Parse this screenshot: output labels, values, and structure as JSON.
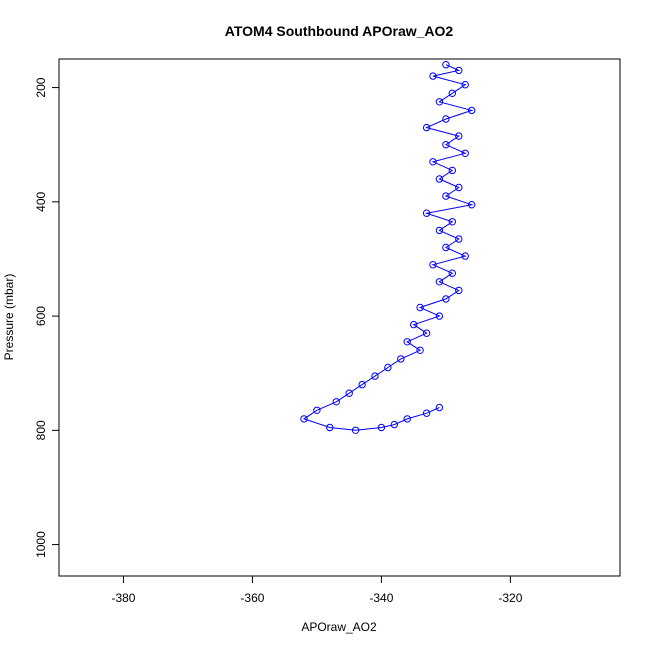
{
  "chart_data": {
    "type": "scatter",
    "title": "ATOM4 Southbound APOraw_AO2",
    "xlabel": "APOraw_AO2",
    "ylabel": "Pressure (mbar)",
    "xlim": [
      -390,
      -303
    ],
    "ylim": [
      1055,
      150
    ],
    "y_reversed": true,
    "xticks": [
      -380,
      -360,
      -340,
      -320
    ],
    "yticks": [
      200,
      400,
      600,
      800,
      1000
    ],
    "grid": false,
    "legend": "none",
    "marker": "open-circle",
    "connected": true,
    "series_color": "#0000ff",
    "series": [
      {
        "points": [
          [
            -330,
            160
          ],
          [
            -328,
            170
          ],
          [
            -332,
            180
          ],
          [
            -327,
            195
          ],
          [
            -329,
            210
          ],
          [
            -331,
            225
          ],
          [
            -326,
            240
          ],
          [
            -330,
            255
          ],
          [
            -333,
            270
          ],
          [
            -328,
            285
          ],
          [
            -330,
            300
          ],
          [
            -327,
            315
          ],
          [
            -332,
            330
          ],
          [
            -329,
            345
          ],
          [
            -331,
            360
          ],
          [
            -328,
            375
          ],
          [
            -330,
            390
          ],
          [
            -326,
            405
          ],
          [
            -333,
            420
          ],
          [
            -329,
            435
          ],
          [
            -331,
            450
          ],
          [
            -328,
            465
          ],
          [
            -330,
            480
          ],
          [
            -327,
            495
          ],
          [
            -332,
            510
          ],
          [
            -329,
            525
          ],
          [
            -331,
            540
          ],
          [
            -328,
            555
          ],
          [
            -330,
            570
          ],
          [
            -334,
            585
          ],
          [
            -331,
            600
          ],
          [
            -335,
            615
          ],
          [
            -333,
            630
          ],
          [
            -336,
            645
          ],
          [
            -334,
            660
          ],
          [
            -337,
            675
          ],
          [
            -339,
            690
          ],
          [
            -341,
            705
          ],
          [
            -343,
            720
          ],
          [
            -345,
            735
          ],
          [
            -347,
            750
          ],
          [
            -350,
            765
          ],
          [
            -352,
            780
          ],
          [
            -348,
            795
          ],
          [
            -344,
            800
          ],
          [
            -340,
            795
          ],
          [
            -338,
            790
          ],
          [
            -336,
            780
          ],
          [
            -333,
            770
          ],
          [
            -331,
            760
          ]
        ]
      }
    ]
  }
}
